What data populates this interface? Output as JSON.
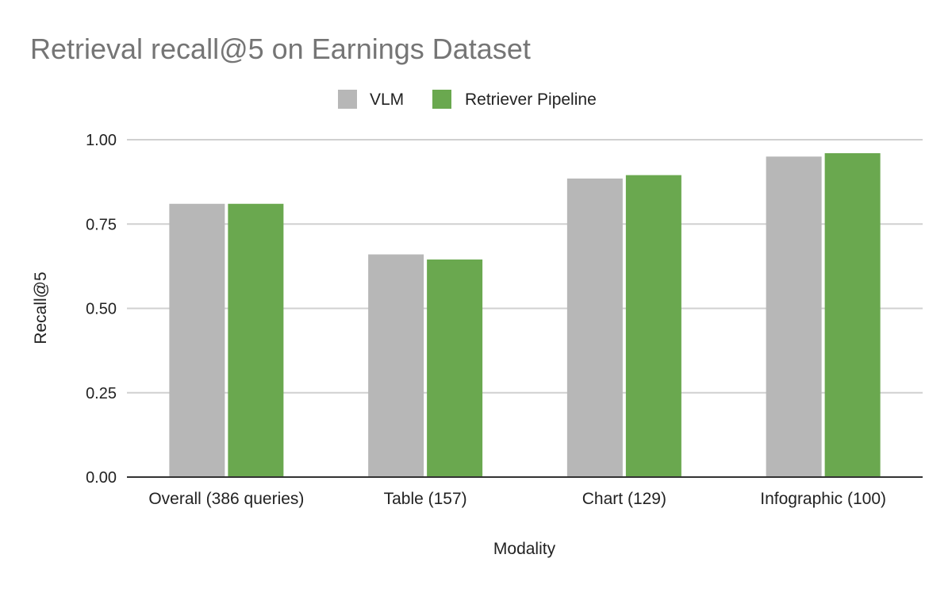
{
  "chart_data": {
    "type": "bar",
    "title": "Retrieval recall@5 on Earnings Dataset",
    "xlabel": "Modality",
    "ylabel": "Recall@5",
    "categories": [
      "Overall (386 queries)",
      "Table (157)",
      "Chart (129)",
      "Infographic (100)"
    ],
    "series": [
      {
        "name": "VLM",
        "color": "#b7b7b7",
        "values": [
          0.81,
          0.66,
          0.885,
          0.95
        ]
      },
      {
        "name": "Retriever Pipeline",
        "color": "#6aa84f",
        "values": [
          0.81,
          0.645,
          0.895,
          0.96
        ]
      }
    ],
    "ylim": [
      0,
      1.0
    ],
    "yticks": [
      "0.00",
      "0.25",
      "0.50",
      "0.75",
      "1.00"
    ],
    "ytick_values": [
      0,
      0.25,
      0.5,
      0.75,
      1.0
    ],
    "grid": true,
    "legend_position": "top"
  }
}
